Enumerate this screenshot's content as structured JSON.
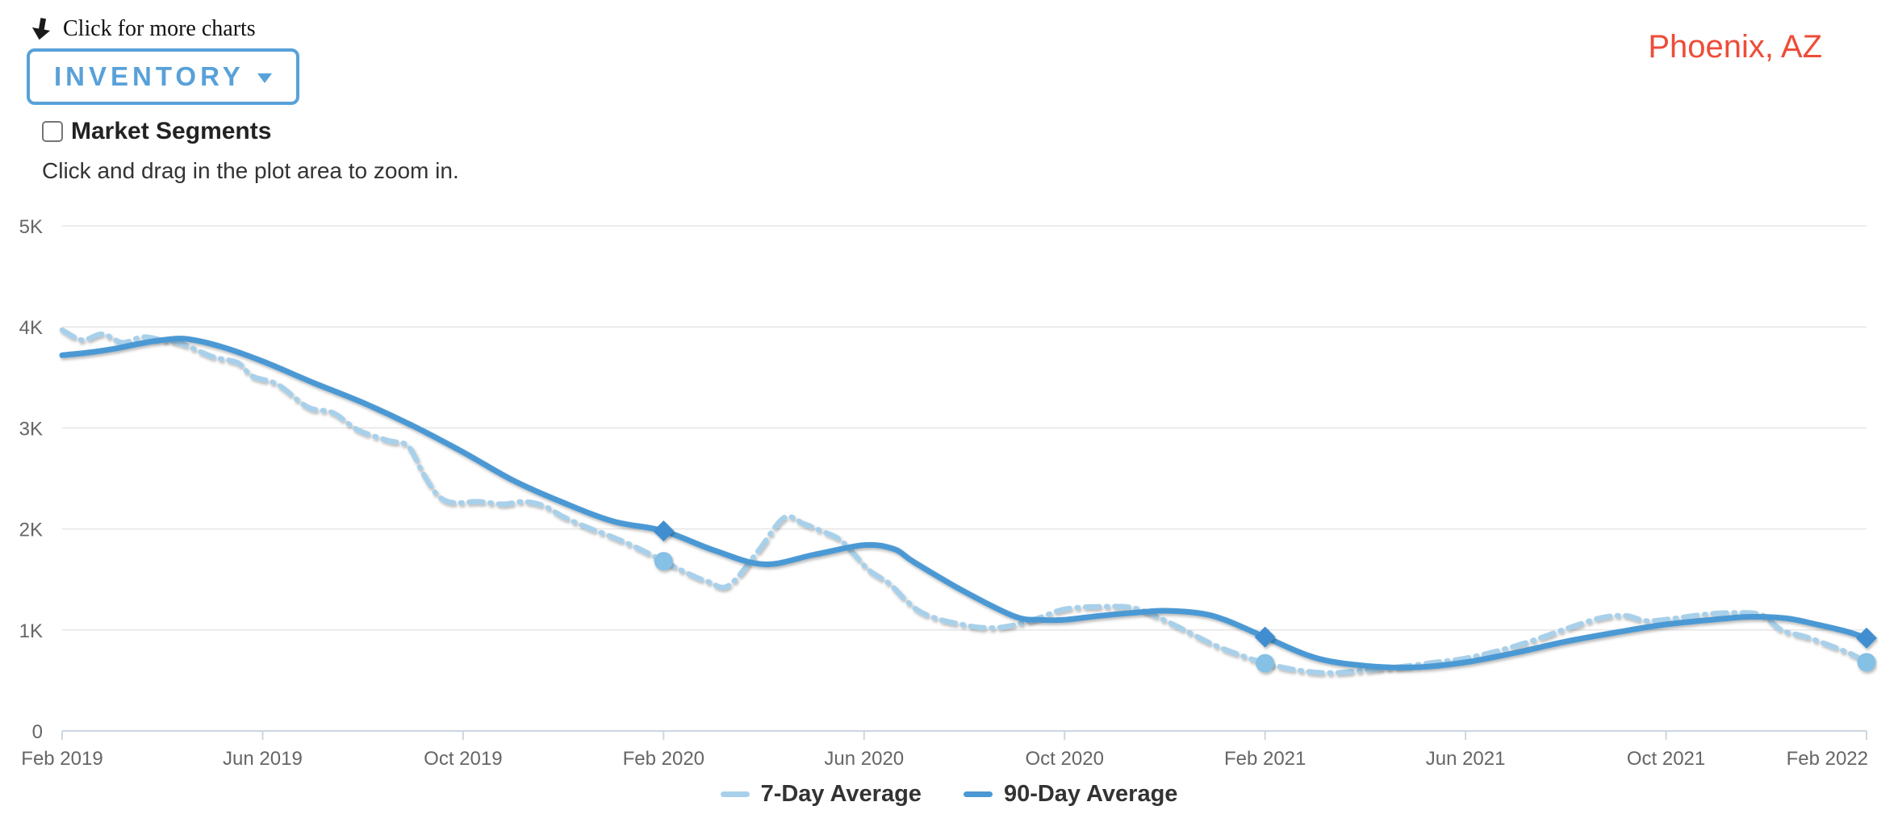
{
  "header": {
    "more_charts_label": "Click for more charts",
    "metric_button": {
      "display": "INVENTORY"
    },
    "market_segments_label": "Market Segments",
    "market_segments_checked": false,
    "zoom_hint": "Click and drag in the plot area to zoom in.",
    "location": "Phoenix, AZ"
  },
  "colors": {
    "accent_blue": "#58a1d9",
    "location_red": "#ee4c38",
    "grid": "#e6e6e6",
    "axis_line": "#ccd6e0",
    "axis_text": "#666666",
    "legend_text": "#333333",
    "series_7day": "#a8d0ea",
    "series_7day_marker": "#85c0e5",
    "series_90day": "#4b99d4",
    "series_90day_marker": "#3f8ecf"
  },
  "chart_data": {
    "type": "line",
    "title": "",
    "xlabel": "",
    "ylabel": "",
    "grid": "horizontal",
    "legend_position": "bottom-center",
    "x_axis": {
      "unit": "month",
      "start": "Feb 2019",
      "end": "Feb 2022",
      "tick_interval_months": 4,
      "tick_labels": [
        "Feb 2019",
        "Jun 2019",
        "Oct 2019",
        "Feb 2020",
        "Jun 2020",
        "Oct 2020",
        "Feb 2021",
        "Jun 2021",
        "Oct 2021",
        "Feb 2022"
      ]
    },
    "y_axis": {
      "min": 0,
      "max": 5000,
      "tick_labels": [
        "0",
        "1K",
        "2K",
        "3K",
        "4K",
        "5K"
      ]
    },
    "series": [
      {
        "name": "7-Day Average",
        "style": "dashed",
        "color": "#a8d0ea",
        "marker": "circle",
        "marker_color": "#85c0e5",
        "points": [
          [
            0,
            3970
          ],
          [
            0.4,
            3870
          ],
          [
            0.8,
            3930
          ],
          [
            1.2,
            3845
          ],
          [
            1.6,
            3900
          ],
          [
            2,
            3870
          ],
          [
            2.4,
            3830
          ],
          [
            3,
            3705
          ],
          [
            3.5,
            3645
          ],
          [
            3.8,
            3510
          ],
          [
            4.3,
            3430
          ],
          [
            4.9,
            3205
          ],
          [
            5.4,
            3150
          ],
          [
            5.9,
            2980
          ],
          [
            6.5,
            2875
          ],
          [
            6.9,
            2820
          ],
          [
            7.2,
            2550
          ],
          [
            7.5,
            2330
          ],
          [
            7.8,
            2260
          ],
          [
            8.3,
            2270
          ],
          [
            8.8,
            2245
          ],
          [
            9.2,
            2270
          ],
          [
            9.6,
            2230
          ],
          [
            10,
            2120
          ],
          [
            10.5,
            2010
          ],
          [
            10.9,
            1935
          ],
          [
            11.4,
            1830
          ],
          [
            12,
            1680
          ],
          [
            12.5,
            1555
          ],
          [
            12.9,
            1475
          ],
          [
            13.3,
            1440
          ],
          [
            13.9,
            1790
          ],
          [
            14.4,
            2110
          ],
          [
            14.8,
            2050
          ],
          [
            15.1,
            1990
          ],
          [
            15.5,
            1900
          ],
          [
            15.8,
            1750
          ],
          [
            16.1,
            1590
          ],
          [
            16.5,
            1460
          ],
          [
            16.8,
            1310
          ],
          [
            17.1,
            1185
          ],
          [
            17.5,
            1105
          ],
          [
            17.9,
            1060
          ],
          [
            18.3,
            1025
          ],
          [
            18.8,
            1030
          ],
          [
            19.4,
            1105
          ],
          [
            20,
            1205
          ],
          [
            20.7,
            1230
          ],
          [
            21.4,
            1215
          ],
          [
            22.1,
            1070
          ],
          [
            22.9,
            870
          ],
          [
            23.4,
            770
          ],
          [
            24,
            670
          ],
          [
            24.7,
            598
          ],
          [
            25.3,
            575
          ],
          [
            26,
            600
          ],
          [
            26.7,
            635
          ],
          [
            27.4,
            680
          ],
          [
            28,
            720
          ],
          [
            28.7,
            800
          ],
          [
            29.4,
            905
          ],
          [
            30,
            1010
          ],
          [
            30.7,
            1120
          ],
          [
            31.2,
            1140
          ],
          [
            31.6,
            1090
          ],
          [
            32.1,
            1110
          ],
          [
            32.7,
            1150
          ],
          [
            33.3,
            1170
          ],
          [
            33.9,
            1150
          ],
          [
            34.3,
            1000
          ],
          [
            34.8,
            930
          ],
          [
            35.3,
            840
          ],
          [
            35.7,
            760
          ],
          [
            36,
            680
          ]
        ],
        "anniversary_points": [
          [
            12,
            1680
          ],
          [
            24,
            670
          ],
          [
            36,
            680
          ]
        ]
      },
      {
        "name": "90-Day Average",
        "style": "solid",
        "color": "#4b99d4",
        "marker": "diamond",
        "marker_color": "#3f8ecf",
        "points": [
          [
            0,
            3720
          ],
          [
            0.5,
            3745
          ],
          [
            1,
            3780
          ],
          [
            1.5,
            3830
          ],
          [
            2,
            3870
          ],
          [
            2.5,
            3880
          ],
          [
            3.2,
            3800
          ],
          [
            4,
            3660
          ],
          [
            5,
            3450
          ],
          [
            6,
            3250
          ],
          [
            7,
            3020
          ],
          [
            8,
            2760
          ],
          [
            9,
            2480
          ],
          [
            10,
            2260
          ],
          [
            11,
            2075
          ],
          [
            12,
            1980
          ],
          [
            13,
            1790
          ],
          [
            14,
            1650
          ],
          [
            15,
            1745
          ],
          [
            16,
            1840
          ],
          [
            16.6,
            1800
          ],
          [
            17,
            1670
          ],
          [
            18,
            1380
          ],
          [
            19,
            1135
          ],
          [
            19.5,
            1100
          ],
          [
            20,
            1100
          ],
          [
            20.7,
            1140
          ],
          [
            21.5,
            1175
          ],
          [
            22,
            1190
          ],
          [
            22.7,
            1165
          ],
          [
            23.2,
            1100
          ],
          [
            24,
            930
          ],
          [
            25,
            725
          ],
          [
            26,
            645
          ],
          [
            27,
            630
          ],
          [
            28,
            680
          ],
          [
            29,
            775
          ],
          [
            30,
            885
          ],
          [
            31,
            975
          ],
          [
            32,
            1055
          ],
          [
            33,
            1105
          ],
          [
            33.7,
            1130
          ],
          [
            34.4,
            1115
          ],
          [
            35,
            1055
          ],
          [
            35.6,
            985
          ],
          [
            36,
            920
          ]
        ],
        "anniversary_points": [
          [
            12,
            1980
          ],
          [
            24,
            930
          ],
          [
            36,
            920
          ]
        ]
      }
    ]
  }
}
